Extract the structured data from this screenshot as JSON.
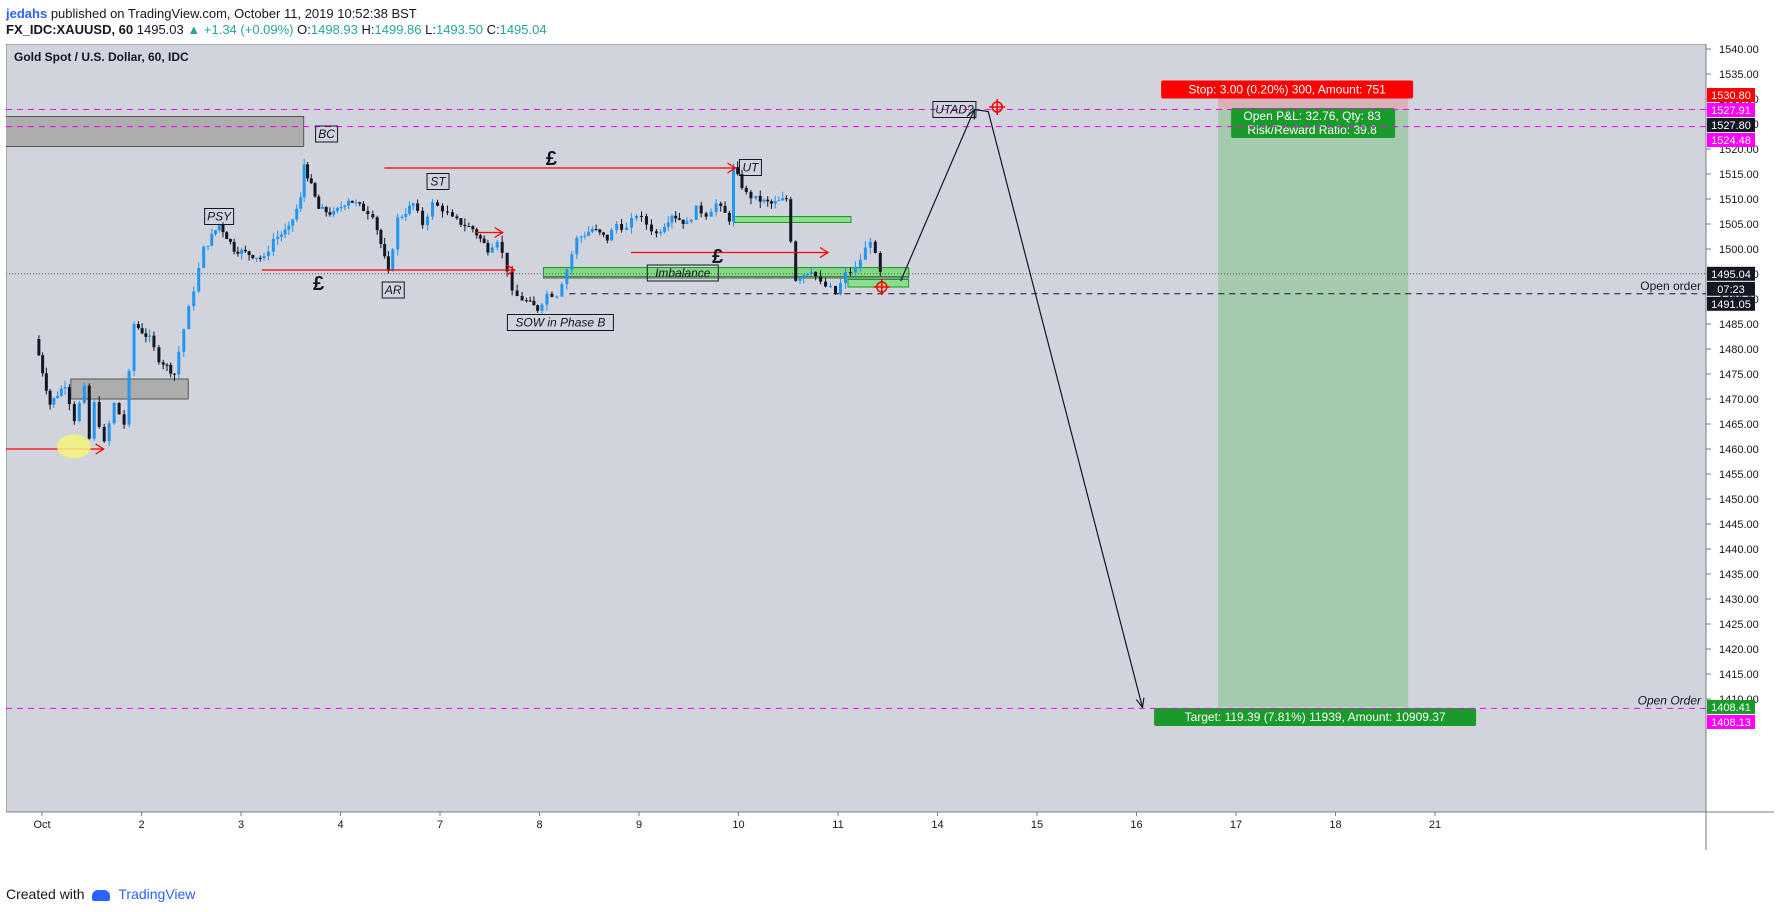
{
  "header": {
    "author": "jedahs",
    "published": "published on TradingView.com, October 11, 2019 10:52:38 BST",
    "symbol": "FX_IDC:XAUUSD, 60",
    "last": "1495.03",
    "change": "+1.34 (+0.09%)",
    "o_label": "O:",
    "o": "1498.93",
    "h_label": "H:",
    "h": "1499.86",
    "l_label": "L:",
    "l": "1493.50",
    "c_label": "C:",
    "c": "1495.04"
  },
  "footer": {
    "created_with": "Created with",
    "brand": "TradingView"
  },
  "chart_data": {
    "type": "candlestick",
    "title": "Gold Spot / U.S. Dollar, 60, IDC",
    "ylim": [
      1400,
      1542
    ],
    "y_ticks": [
      "1540.00",
      "1535.00",
      "1530.00",
      "1525.00",
      "1520.00",
      "1515.00",
      "1510.00",
      "1505.00",
      "1500.00",
      "1495.00",
      "1490.00",
      "1485.00",
      "1480.00",
      "1475.00",
      "1470.00",
      "1465.00",
      "1460.00",
      "1455.00",
      "1450.00",
      "1445.00",
      "1440.00",
      "1435.00",
      "1430.00",
      "1425.00",
      "1420.00",
      "1415.00",
      "1410.00"
    ],
    "x_ticks": [
      {
        "label": "Oct",
        "day": 1
      },
      {
        "label": "2",
        "day": 2
      },
      {
        "label": "3",
        "day": 3
      },
      {
        "label": "4",
        "day": 4
      },
      {
        "label": "7",
        "day": 5
      },
      {
        "label": "8",
        "day": 6
      },
      {
        "label": "9",
        "day": 7
      },
      {
        "label": "10",
        "day": 8
      },
      {
        "label": "11",
        "day": 9
      },
      {
        "label": "14",
        "day": 10
      },
      {
        "label": "15",
        "day": 11
      },
      {
        "label": "16",
        "day": 12
      },
      {
        "label": "17",
        "day": 13
      },
      {
        "label": "18",
        "day": 14
      },
      {
        "label": "21",
        "day": 15
      }
    ],
    "price_path": [
      [
        0.95,
        1482
      ],
      [
        1.1,
        1469
      ],
      [
        1.25,
        1473
      ],
      [
        1.35,
        1466
      ],
      [
        1.45,
        1472
      ],
      [
        1.5,
        1462
      ],
      [
        1.55,
        1469
      ],
      [
        1.65,
        1461
      ],
      [
        1.75,
        1469
      ],
      [
        1.85,
        1465
      ],
      [
        1.95,
        1485
      ],
      [
        2.1,
        1482
      ],
      [
        2.2,
        1478
      ],
      [
        2.35,
        1475
      ],
      [
        2.45,
        1484
      ],
      [
        2.55,
        1492
      ],
      [
        2.65,
        1500
      ],
      [
        2.8,
        1505
      ],
      [
        2.95,
        1500
      ],
      [
        3.1,
        1499
      ],
      [
        3.25,
        1498
      ],
      [
        3.35,
        1502
      ],
      [
        3.5,
        1504
      ],
      [
        3.62,
        1510
      ],
      [
        3.65,
        1517
      ],
      [
        3.8,
        1508
      ],
      [
        3.95,
        1507
      ],
      [
        4.1,
        1510
      ],
      [
        4.25,
        1508
      ],
      [
        4.35,
        1507
      ],
      [
        4.5,
        1495
      ],
      [
        4.6,
        1506
      ],
      [
        4.75,
        1509
      ],
      [
        4.85,
        1505
      ],
      [
        4.95,
        1509
      ],
      [
        5.05,
        1508
      ],
      [
        5.15,
        1506
      ],
      [
        5.35,
        1504
      ],
      [
        5.5,
        1500
      ],
      [
        5.6,
        1502
      ],
      [
        5.7,
        1496
      ],
      [
        5.75,
        1491
      ],
      [
        5.85,
        1490
      ],
      [
        6.0,
        1488
      ],
      [
        6.1,
        1491
      ],
      [
        6.2,
        1491
      ],
      [
        6.3,
        1496
      ],
      [
        6.4,
        1502
      ],
      [
        6.55,
        1504
      ],
      [
        6.7,
        1502
      ],
      [
        6.8,
        1505
      ],
      [
        6.9,
        1504
      ],
      [
        7.0,
        1507
      ],
      [
        7.1,
        1505
      ],
      [
        7.2,
        1503
      ],
      [
        7.35,
        1507
      ],
      [
        7.5,
        1505
      ],
      [
        7.6,
        1508
      ],
      [
        7.7,
        1507
      ],
      [
        7.8,
        1509
      ],
      [
        7.93,
        1506
      ],
      [
        7.97,
        1516
      ],
      [
        8.1,
        1511
      ],
      [
        8.2,
        1510
      ],
      [
        8.35,
        1509
      ],
      [
        8.5,
        1510
      ],
      [
        8.55,
        1502
      ],
      [
        8.6,
        1494
      ],
      [
        8.75,
        1496
      ],
      [
        8.85,
        1493
      ],
      [
        8.95,
        1492
      ],
      [
        9.0,
        1491
      ],
      [
        9.1,
        1495
      ],
      [
        9.2,
        1496
      ],
      [
        9.3,
        1500
      ],
      [
        9.35,
        1502
      ],
      [
        9.45,
        1495.03
      ]
    ],
    "key_levels": {
      "upper_dashed_1": 1527.91,
      "upper_dashed_2": 1524.48,
      "open_order_level": 1491.05,
      "lower_dashed": 1408.13,
      "current_price": 1495.04
    },
    "price_labels": [
      {
        "text": "1530.80",
        "value": 1530.8,
        "color": "#ff0000"
      },
      {
        "text": "1527.91",
        "value": 1527.91,
        "color": "#ff00ff"
      },
      {
        "text": "1527.80",
        "value": 1527.8,
        "color": "#131722"
      },
      {
        "text": "1524.48",
        "value": 1524.48,
        "color": "#ff00ff"
      },
      {
        "text": "1495.04",
        "value": 1495.04,
        "color": "#131722"
      },
      {
        "text": "07:23",
        "value": 1493.0,
        "color": "#131722"
      },
      {
        "text": "1491.05",
        "value": 1491.05,
        "color": "#131722"
      },
      {
        "text": "1408.41",
        "value": 1408.41,
        "color": "#1a9a2a"
      },
      {
        "text": "1408.13",
        "value": 1408.13,
        "color": "#ff00ff"
      }
    ],
    "zones": [
      {
        "name": "bc-zone",
        "x1": 0.62,
        "x2": 3.63,
        "y1": 1526.5,
        "y2": 1520.5,
        "color": "#9e9e9e"
      },
      {
        "name": "accumulation-zone",
        "x1": 1.29,
        "x2": 2.47,
        "y1": 1474,
        "y2": 1470,
        "color": "#9e9e9e"
      },
      {
        "name": "imbalance-zone",
        "x1": 6.04,
        "x2": 9.71,
        "y1": 1496,
        "y2": 1494.2,
        "color": "#9e9e9e"
      },
      {
        "name": "demand-zone-1",
        "x1": 6.04,
        "x2": 9.71,
        "y1": 1496.3,
        "y2": 1494.5,
        "color": "#4caf50"
      },
      {
        "name": "demand-zone-2",
        "x1": 7.96,
        "x2": 9.13,
        "y1": 1506.5,
        "y2": 1505.3,
        "color": "#4caf50"
      },
      {
        "name": "order-zone",
        "x1": 9.1,
        "x2": 9.71,
        "y1": 1493.9,
        "y2": 1492.4,
        "color": "#4caf50"
      }
    ],
    "position": {
      "x1": 12.82,
      "x2": 14.73,
      "stop_top": 1530.8,
      "entry": 1527.8,
      "target": 1408.41,
      "stop_label": "Stop: 3.00 (0.20%) 300, Amount: 751",
      "pnl_label": "Open P&L: 32.76, Qty: 83",
      "rr_label": "Risk/Reward Ratio: 39.8",
      "target_label": "Target: 119.39 (7.81%) 11939, Amount: 10909.37"
    },
    "annotations": [
      {
        "text": "BC",
        "day": 3.86,
        "value": 1523
      },
      {
        "text": "PSY",
        "day": 2.78,
        "value": 1506.5
      },
      {
        "text": "ST",
        "day": 4.98,
        "value": 1513.5
      },
      {
        "text": "AR",
        "day": 4.53,
        "value": 1491.8
      },
      {
        "text": "UT",
        "day": 8.12,
        "value": 1516.3
      },
      {
        "text": "UTAD?",
        "day": 10.17,
        "value": 1527.9
      },
      {
        "text": "SOW in Phase B",
        "day": 6.21,
        "value": 1485.3
      },
      {
        "text": "Imbalance",
        "day": 7.44,
        "value": 1495.2
      }
    ],
    "pound_labels": [
      {
        "text": "£",
        "day": 6.12,
        "value": 1518.2
      },
      {
        "text": "£",
        "day": 3.78,
        "value": 1493.2
      },
      {
        "text": "£",
        "day": 7.79,
        "value": 1498.6
      }
    ],
    "red_arrows": [
      {
        "x1": 0.62,
        "x2": 1.62,
        "value": 1460
      },
      {
        "x1": 3.21,
        "x2": 5.75,
        "value": 1495.8
      },
      {
        "x1": 4.44,
        "x2": 7.97,
        "value": 1516.2
      },
      {
        "x1": 5.35,
        "x2": 5.63,
        "value": 1503.3
      },
      {
        "x1": 6.92,
        "x2": 8.9,
        "value": 1499.3
      }
    ],
    "projection_path": [
      [
        9.63,
        1493.6
      ],
      [
        10.37,
        1527.9
      ],
      [
        10.51,
        1527.5
      ],
      [
        12.06,
        1408.3
      ]
    ],
    "targets": [
      {
        "day": 9.44,
        "value": 1492.4
      },
      {
        "day": 10.6,
        "value": 1528.4
      }
    ],
    "open_order_text": "Open order",
    "open_order_text_lower": "Open Order"
  }
}
